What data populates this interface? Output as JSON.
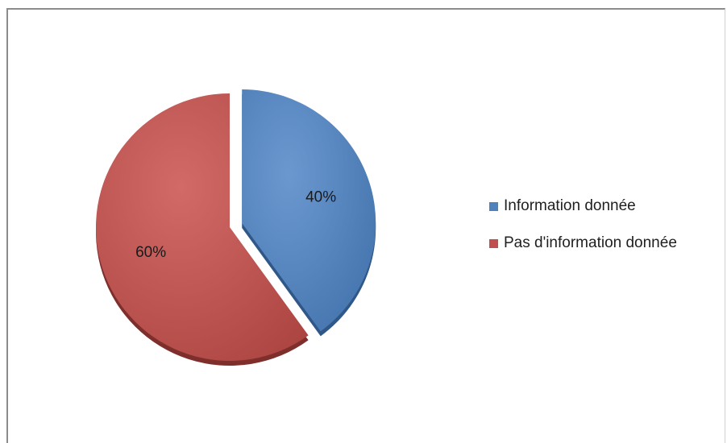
{
  "chart_data": {
    "type": "pie",
    "title": "",
    "slices": [
      {
        "label": "Information donnée",
        "value": 40,
        "display": "40%",
        "color": "#4f81bd",
        "exploded": true
      },
      {
        "label": "Pas d'information donnée",
        "value": 60,
        "display": "60%",
        "color": "#c0504d",
        "exploded": false
      }
    ],
    "legend_position": "right"
  }
}
